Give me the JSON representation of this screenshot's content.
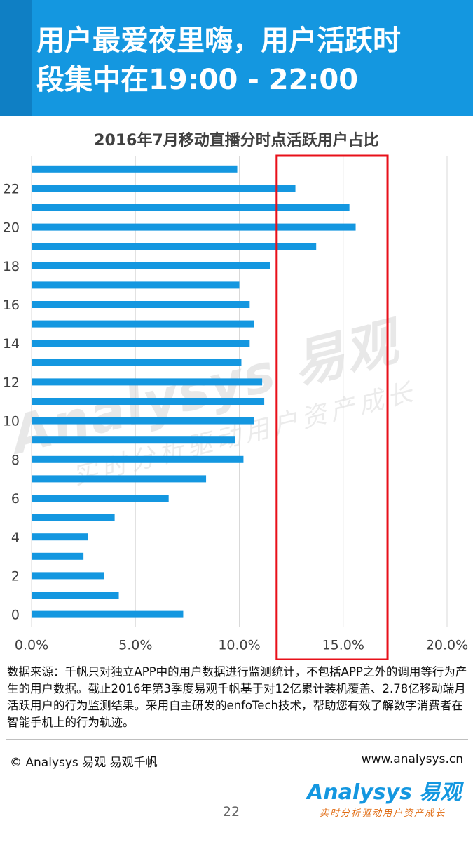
{
  "header": {
    "title_line1": "用户最爱夜里嗨，用户活跃时",
    "title_line2": "段集中在19:00 - 22:00"
  },
  "chart_data": {
    "type": "bar",
    "orientation": "horizontal",
    "title": "2016年7月移动直播分时点活跃用户占比",
    "categories": [
      0,
      1,
      2,
      3,
      4,
      5,
      6,
      7,
      8,
      9,
      10,
      11,
      12,
      13,
      14,
      15,
      16,
      17,
      18,
      19,
      20,
      21,
      22,
      23
    ],
    "values": [
      7.3,
      4.2,
      3.5,
      2.5,
      2.7,
      4.0,
      6.6,
      8.4,
      10.2,
      9.8,
      10.7,
      11.2,
      11.1,
      10.1,
      10.5,
      10.7,
      10.5,
      10.0,
      11.5,
      13.7,
      15.6,
      15.3,
      12.7,
      9.9
    ],
    "y_tick_labels": [
      "0",
      "2",
      "4",
      "6",
      "8",
      "10",
      "12",
      "14",
      "16",
      "18",
      "20",
      "22"
    ],
    "x_tick_labels": [
      "0.0%",
      "5.0%",
      "10.0%",
      "15.0%",
      "20.0%"
    ],
    "xlim": [
      0,
      20
    ],
    "bar_color": "#1497e0",
    "highlight": {
      "x_range": [
        12,
        17
      ],
      "color": "#e8101a"
    },
    "grid": true,
    "legend": "none"
  },
  "watermark": {
    "main": "Analysys 易观",
    "tag": "实时分析驱动用户资产成长"
  },
  "source_text": "数据来源：千帆只对独立APP中的用户数据进行监测统计，不包括APP之外的调用等行为产生的用户数据。截止2016年第3季度易观千帆基于对12亿累计装机覆盖、2.78亿移动端月活跃用户的行为监测结果。采用自主研发的enfoTech技术，帮助您有效了解数字消费者在智能手机上的行为轨迹。",
  "footer": {
    "copyright": "© Analysys 易观 易观千帆",
    "website": "www.analysys.cn",
    "logo_main": "Analysys 易观",
    "logo_tag": "实时分析驱动用户资产成长",
    "page_number": "22"
  },
  "colors": {
    "header_bg": "#1497e0",
    "header_stripe": "#0f7fc4",
    "bar": "#1497e0",
    "highlight_box": "#e8101a",
    "grid": "#d9d9d9"
  }
}
